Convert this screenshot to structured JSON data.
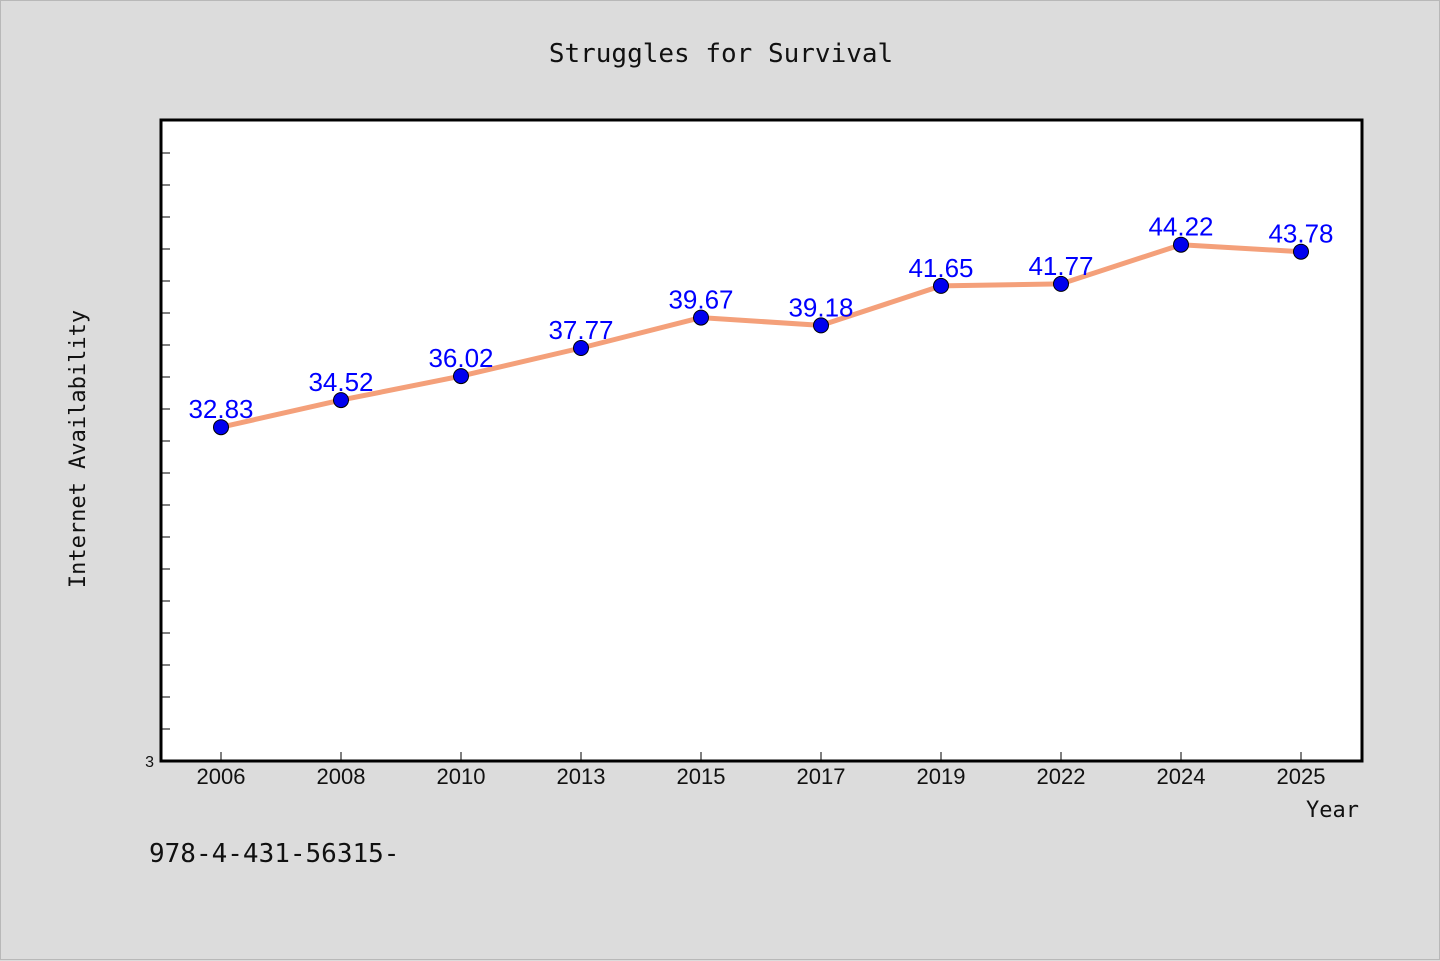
{
  "chart_data": {
    "type": "line",
    "title": "Struggles for Survival",
    "xlabel": "Year",
    "ylabel": "Internet Availability",
    "categories": [
      "2006",
      "2008",
      "2010",
      "2013",
      "2015",
      "2017",
      "2019",
      "2022",
      "2024",
      "2025"
    ],
    "series": [
      {
        "values": [
          32.83,
          34.52,
          36.02,
          37.77,
          39.67,
          39.18,
          41.65,
          41.77,
          44.22,
          43.78
        ]
      }
    ],
    "data_labels": [
      "32.83",
      "34.52",
      "36.02",
      "37.77",
      "39.67",
      "39.18",
      "41.65",
      "41.77",
      "44.22",
      "43.78"
    ],
    "y_tick_labels": [
      "3"
    ],
    "ylim": [
      12,
      52
    ],
    "grid": false,
    "colors": {
      "line": "#f4a07a",
      "marker": "#0000ee",
      "data_label": "#0000ff",
      "plot_background": "#ffffff",
      "page_background": "#dcdcdc"
    }
  },
  "footer_text": "978-4-431-56315-"
}
